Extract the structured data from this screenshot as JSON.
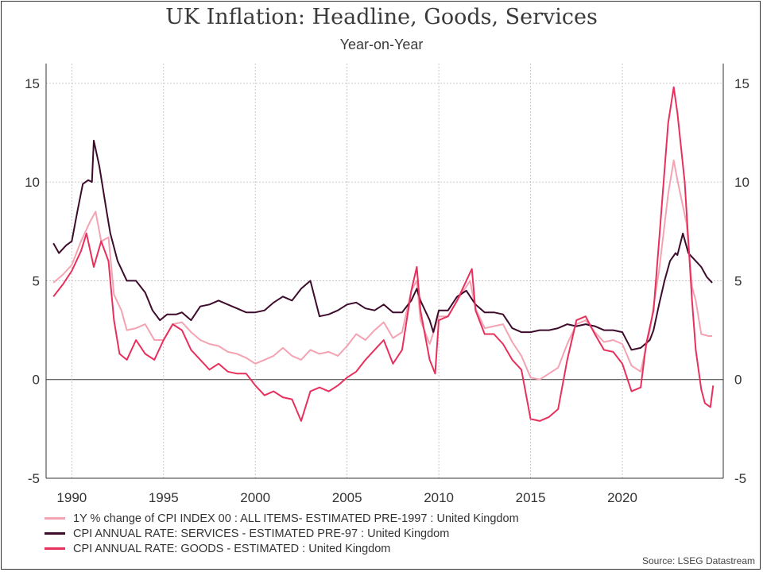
{
  "chart_data": {
    "type": "line",
    "title": "UK Inflation: Headline, Goods, Services",
    "subtitle": "Year-on-Year",
    "xlim": [
      1988.6,
      2025.5
    ],
    "ylim": [
      -5,
      16
    ],
    "y_ticks": [
      -5,
      0,
      5,
      10,
      15
    ],
    "x_ticks": [
      1990,
      1995,
      2000,
      2005,
      2010,
      2015,
      2020
    ],
    "grid": true,
    "dual_y_axis": true,
    "legend_position": "bottom-left",
    "source": "Source: LSEG Datastream",
    "series": [
      {
        "name": "1Y % change of CPI INDEX 00 : ALL ITEMS- ESTIMATED PRE-1997 : United Kingdom",
        "color": "#f4a3b3",
        "points": [
          [
            1989.0,
            4.9
          ],
          [
            1989.5,
            5.3
          ],
          [
            1990.0,
            5.8
          ],
          [
            1990.5,
            7.0
          ],
          [
            1991.0,
            8.0
          ],
          [
            1991.3,
            8.5
          ],
          [
            1991.6,
            7.0
          ],
          [
            1992.0,
            7.2
          ],
          [
            1992.3,
            4.3
          ],
          [
            1992.7,
            3.5
          ],
          [
            1993.0,
            2.5
          ],
          [
            1993.5,
            2.6
          ],
          [
            1994.0,
            2.8
          ],
          [
            1994.5,
            2.0
          ],
          [
            1995.0,
            2.0
          ],
          [
            1995.5,
            2.8
          ],
          [
            1996.0,
            2.9
          ],
          [
            1996.5,
            2.4
          ],
          [
            1997.0,
            2.0
          ],
          [
            1997.5,
            1.8
          ],
          [
            1998.0,
            1.7
          ],
          [
            1998.5,
            1.4
          ],
          [
            1999.0,
            1.3
          ],
          [
            1999.5,
            1.1
          ],
          [
            2000.0,
            0.8
          ],
          [
            2000.5,
            1.0
          ],
          [
            2001.0,
            1.2
          ],
          [
            2001.5,
            1.6
          ],
          [
            2002.0,
            1.2
          ],
          [
            2002.5,
            1.0
          ],
          [
            2003.0,
            1.5
          ],
          [
            2003.5,
            1.3
          ],
          [
            2004.0,
            1.4
          ],
          [
            2004.5,
            1.2
          ],
          [
            2005.0,
            1.7
          ],
          [
            2005.5,
            2.3
          ],
          [
            2006.0,
            2.0
          ],
          [
            2006.5,
            2.5
          ],
          [
            2007.0,
            2.9
          ],
          [
            2007.5,
            2.1
          ],
          [
            2008.0,
            2.4
          ],
          [
            2008.5,
            4.5
          ],
          [
            2008.8,
            5.0
          ],
          [
            2009.0,
            3.0
          ],
          [
            2009.5,
            1.8
          ],
          [
            2010.0,
            3.2
          ],
          [
            2010.5,
            3.2
          ],
          [
            2011.0,
            4.0
          ],
          [
            2011.7,
            5.0
          ],
          [
            2012.0,
            3.6
          ],
          [
            2012.5,
            2.6
          ],
          [
            2013.0,
            2.7
          ],
          [
            2013.5,
            2.8
          ],
          [
            2014.0,
            1.9
          ],
          [
            2014.5,
            1.2
          ],
          [
            2015.0,
            0.1
          ],
          [
            2015.5,
            0.0
          ],
          [
            2016.0,
            0.3
          ],
          [
            2016.5,
            0.6
          ],
          [
            2017.0,
            1.8
          ],
          [
            2017.5,
            2.8
          ],
          [
            2018.0,
            3.0
          ],
          [
            2018.5,
            2.4
          ],
          [
            2019.0,
            1.9
          ],
          [
            2019.5,
            2.0
          ],
          [
            2020.0,
            1.8
          ],
          [
            2020.5,
            0.7
          ],
          [
            2021.0,
            0.4
          ],
          [
            2021.5,
            2.5
          ],
          [
            2022.0,
            5.5
          ],
          [
            2022.5,
            9.4
          ],
          [
            2022.8,
            11.1
          ],
          [
            2023.0,
            10.1
          ],
          [
            2023.5,
            7.9
          ],
          [
            2023.8,
            4.7
          ],
          [
            2024.0,
            4.0
          ],
          [
            2024.3,
            2.3
          ],
          [
            2024.7,
            2.2
          ],
          [
            2024.9,
            2.2
          ]
        ]
      },
      {
        "name": "CPI ANNUAL RATE: SERVICES - ESTIMATED PRE-97 : United Kingdom",
        "color": "#3d0c2c",
        "points": [
          [
            1989.0,
            6.9
          ],
          [
            1989.3,
            6.4
          ],
          [
            1989.7,
            6.8
          ],
          [
            1990.0,
            7.0
          ],
          [
            1990.3,
            8.5
          ],
          [
            1990.6,
            9.9
          ],
          [
            1990.9,
            10.1
          ],
          [
            1991.1,
            10.0
          ],
          [
            1991.2,
            12.1
          ],
          [
            1991.5,
            10.8
          ],
          [
            1991.9,
            8.5
          ],
          [
            1992.1,
            7.4
          ],
          [
            1992.5,
            6.0
          ],
          [
            1993.0,
            5.0
          ],
          [
            1993.5,
            5.0
          ],
          [
            1994.0,
            4.4
          ],
          [
            1994.4,
            3.5
          ],
          [
            1994.8,
            3.0
          ],
          [
            1995.2,
            3.3
          ],
          [
            1995.7,
            3.3
          ],
          [
            1996.0,
            3.4
          ],
          [
            1996.5,
            3.0
          ],
          [
            1997.0,
            3.7
          ],
          [
            1997.5,
            3.8
          ],
          [
            1998.0,
            4.0
          ],
          [
            1998.5,
            3.8
          ],
          [
            1999.0,
            3.6
          ],
          [
            1999.5,
            3.4
          ],
          [
            2000.0,
            3.4
          ],
          [
            2000.5,
            3.5
          ],
          [
            2001.0,
            3.9
          ],
          [
            2001.5,
            4.2
          ],
          [
            2002.0,
            4.0
          ],
          [
            2002.5,
            4.6
          ],
          [
            2003.0,
            5.0
          ],
          [
            2003.5,
            3.2
          ],
          [
            2004.0,
            3.3
          ],
          [
            2004.5,
            3.5
          ],
          [
            2005.0,
            3.8
          ],
          [
            2005.5,
            3.9
          ],
          [
            2006.0,
            3.6
          ],
          [
            2006.5,
            3.5
          ],
          [
            2007.0,
            3.8
          ],
          [
            2007.5,
            3.4
          ],
          [
            2008.0,
            3.4
          ],
          [
            2008.5,
            4.0
          ],
          [
            2008.8,
            4.6
          ],
          [
            2009.0,
            4.0
          ],
          [
            2009.5,
            3.0
          ],
          [
            2009.7,
            2.4
          ],
          [
            2010.0,
            3.5
          ],
          [
            2010.5,
            3.5
          ],
          [
            2011.0,
            4.2
          ],
          [
            2011.5,
            4.5
          ],
          [
            2012.0,
            3.8
          ],
          [
            2012.5,
            3.4
          ],
          [
            2013.0,
            3.4
          ],
          [
            2013.5,
            3.3
          ],
          [
            2014.0,
            2.6
          ],
          [
            2014.5,
            2.4
          ],
          [
            2015.0,
            2.4
          ],
          [
            2015.5,
            2.5
          ],
          [
            2016.0,
            2.5
          ],
          [
            2016.5,
            2.6
          ],
          [
            2017.0,
            2.8
          ],
          [
            2017.5,
            2.7
          ],
          [
            2018.0,
            2.8
          ],
          [
            2018.5,
            2.7
          ],
          [
            2019.0,
            2.5
          ],
          [
            2019.5,
            2.5
          ],
          [
            2020.0,
            2.4
          ],
          [
            2020.5,
            1.5
          ],
          [
            2021.0,
            1.6
          ],
          [
            2021.5,
            2.0
          ],
          [
            2021.7,
            2.5
          ],
          [
            2022.0,
            3.8
          ],
          [
            2022.3,
            5.0
          ],
          [
            2022.6,
            6.0
          ],
          [
            2022.9,
            6.4
          ],
          [
            2023.0,
            6.3
          ],
          [
            2023.3,
            7.4
          ],
          [
            2023.6,
            6.4
          ],
          [
            2024.0,
            6.0
          ],
          [
            2024.3,
            5.7
          ],
          [
            2024.6,
            5.2
          ],
          [
            2024.9,
            4.9
          ]
        ]
      },
      {
        "name": "CPI ANNUAL RATE: GOODS - ESTIMATED : United Kingdom",
        "color": "#e8305c",
        "points": [
          [
            1989.0,
            4.2
          ],
          [
            1989.5,
            4.8
          ],
          [
            1990.0,
            5.5
          ],
          [
            1990.5,
            6.5
          ],
          [
            1990.8,
            7.4
          ],
          [
            1991.2,
            5.7
          ],
          [
            1991.6,
            7.0
          ],
          [
            1992.0,
            6.0
          ],
          [
            1992.3,
            3.0
          ],
          [
            1992.6,
            1.3
          ],
          [
            1993.0,
            1.0
          ],
          [
            1993.5,
            2.0
          ],
          [
            1994.0,
            1.3
          ],
          [
            1994.5,
            1.0
          ],
          [
            1995.0,
            2.0
          ],
          [
            1995.5,
            2.8
          ],
          [
            1996.0,
            2.5
          ],
          [
            1996.5,
            1.5
          ],
          [
            1997.0,
            1.0
          ],
          [
            1997.5,
            0.5
          ],
          [
            1998.0,
            0.8
          ],
          [
            1998.5,
            0.4
          ],
          [
            1999.0,
            0.3
          ],
          [
            1999.5,
            0.3
          ],
          [
            2000.0,
            -0.3
          ],
          [
            2000.5,
            -0.8
          ],
          [
            2001.0,
            -0.6
          ],
          [
            2001.5,
            -0.9
          ],
          [
            2002.0,
            -1.0
          ],
          [
            2002.5,
            -2.1
          ],
          [
            2003.0,
            -0.6
          ],
          [
            2003.5,
            -0.4
          ],
          [
            2004.0,
            -0.6
          ],
          [
            2004.5,
            -0.3
          ],
          [
            2005.0,
            0.1
          ],
          [
            2005.5,
            0.4
          ],
          [
            2006.0,
            1.0
          ],
          [
            2006.5,
            1.5
          ],
          [
            2007.0,
            2.0
          ],
          [
            2007.5,
            0.8
          ],
          [
            2008.0,
            1.5
          ],
          [
            2008.5,
            4.5
          ],
          [
            2008.8,
            5.7
          ],
          [
            2009.0,
            3.5
          ],
          [
            2009.5,
            1.0
          ],
          [
            2009.8,
            0.3
          ],
          [
            2010.0,
            3.0
          ],
          [
            2010.5,
            3.2
          ],
          [
            2011.0,
            4.0
          ],
          [
            2011.5,
            5.0
          ],
          [
            2011.8,
            5.6
          ],
          [
            2012.0,
            3.5
          ],
          [
            2012.5,
            2.3
          ],
          [
            2013.0,
            2.3
          ],
          [
            2013.5,
            1.8
          ],
          [
            2014.0,
            1.0
          ],
          [
            2014.5,
            0.5
          ],
          [
            2015.0,
            -2.0
          ],
          [
            2015.5,
            -2.1
          ],
          [
            2016.0,
            -1.9
          ],
          [
            2016.5,
            -1.5
          ],
          [
            2017.0,
            1.0
          ],
          [
            2017.5,
            3.0
          ],
          [
            2018.0,
            3.2
          ],
          [
            2018.5,
            2.3
          ],
          [
            2019.0,
            1.5
          ],
          [
            2019.5,
            1.4
          ],
          [
            2020.0,
            0.8
          ],
          [
            2020.5,
            -0.6
          ],
          [
            2021.0,
            -0.4
          ],
          [
            2021.3,
            1.8
          ],
          [
            2021.7,
            3.5
          ],
          [
            2022.0,
            7.0
          ],
          [
            2022.5,
            13.0
          ],
          [
            2022.8,
            14.8
          ],
          [
            2023.0,
            13.5
          ],
          [
            2023.4,
            10.0
          ],
          [
            2023.8,
            4.0
          ],
          [
            2024.0,
            1.5
          ],
          [
            2024.3,
            -0.5
          ],
          [
            2024.5,
            -1.2
          ],
          [
            2024.8,
            -1.4
          ],
          [
            2024.95,
            -0.3
          ]
        ]
      }
    ]
  }
}
